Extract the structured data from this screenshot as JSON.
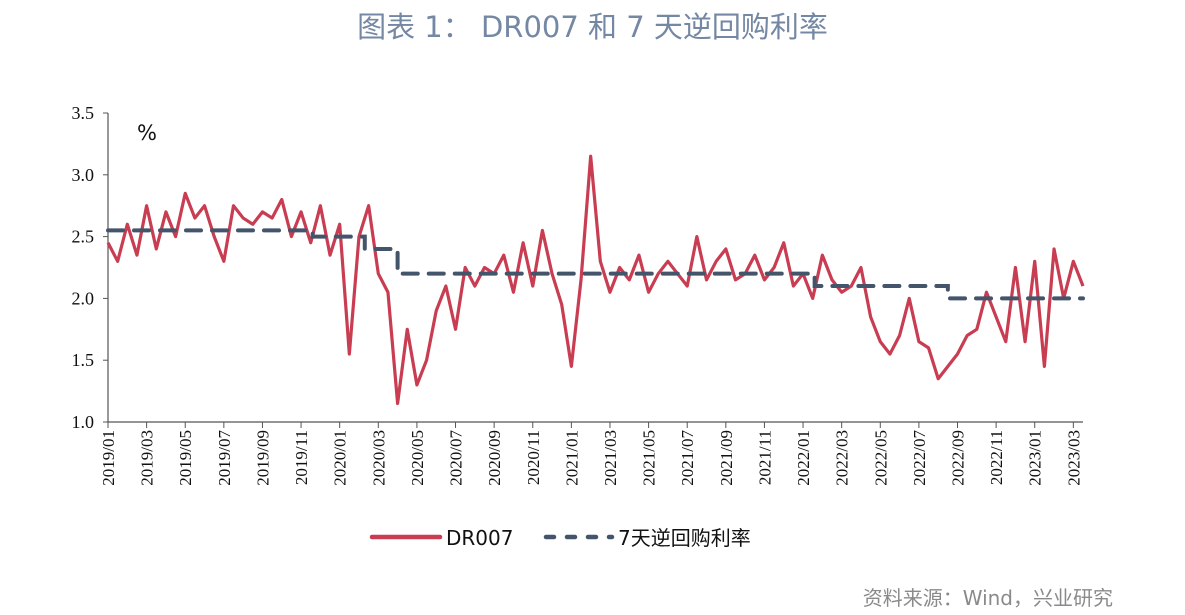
{
  "title": "图表 1： DR007 和 7 天逆回购利率",
  "source": "资料来源：Wind，兴业研究",
  "chart_data": {
    "type": "line",
    "title": "图表 1： DR007 和 7 天逆回购利率",
    "ylabel": "%",
    "xlabel": "",
    "ylim": [
      1.0,
      3.5
    ],
    "yticks": [
      "1.0",
      "1.5",
      "2.0",
      "2.5",
      "3.0",
      "3.5"
    ],
    "xticks": [
      "2019/01",
      "2019/03",
      "2019/05",
      "2019/07",
      "2019/09",
      "2019/11",
      "2020/01",
      "2020/03",
      "2020/05",
      "2020/07",
      "2020/09",
      "2020/11",
      "2021/01",
      "2021/03",
      "2021/05",
      "2021/07",
      "2021/09",
      "2021/11",
      "2022/01",
      "2022/03",
      "2022/05",
      "2022/07",
      "2022/09",
      "2022/11",
      "2023/01",
      "2023/03"
    ],
    "x_unit": "months since 2019/01",
    "xlim": [
      0,
      50.5
    ],
    "grid": false,
    "legend_position": "bottom",
    "colors": {
      "DR007": "#c93d52",
      "7天逆回购利率": "#44546a"
    },
    "series": [
      {
        "name": "DR007",
        "style": "solid",
        "x_step": 0.5,
        "values": [
          2.45,
          2.3,
          2.6,
          2.35,
          2.75,
          2.4,
          2.7,
          2.5,
          2.85,
          2.65,
          2.75,
          2.5,
          2.3,
          2.75,
          2.65,
          2.6,
          2.7,
          2.65,
          2.8,
          2.5,
          2.7,
          2.45,
          2.75,
          2.35,
          2.6,
          1.55,
          2.5,
          2.75,
          2.2,
          2.05,
          1.15,
          1.75,
          1.3,
          1.5,
          1.9,
          2.1,
          1.75,
          2.25,
          2.1,
          2.25,
          2.2,
          2.35,
          2.05,
          2.45,
          2.1,
          2.55,
          2.2,
          1.95,
          1.45,
          2.15,
          3.15,
          2.3,
          2.05,
          2.25,
          2.15,
          2.35,
          2.05,
          2.2,
          2.3,
          2.2,
          2.1,
          2.5,
          2.15,
          2.3,
          2.4,
          2.15,
          2.2,
          2.35,
          2.15,
          2.25,
          2.45,
          2.1,
          2.2,
          2.0,
          2.35,
          2.15,
          2.05,
          2.1,
          2.25,
          1.85,
          1.65,
          1.55,
          1.7,
          2.0,
          1.65,
          1.6,
          1.35,
          1.45,
          1.55,
          1.7,
          1.75,
          2.05,
          1.85,
          1.65,
          2.25,
          1.65,
          2.3,
          1.45,
          2.4,
          2.0,
          2.3,
          2.1
        ]
      },
      {
        "name": "7天逆回购利率",
        "style": "dashed",
        "steps": [
          {
            "from": 0,
            "to": 10.6,
            "value": 2.55
          },
          {
            "from": 10.6,
            "to": 13.3,
            "value": 2.5
          },
          {
            "from": 13.3,
            "to": 15.0,
            "value": 2.4
          },
          {
            "from": 15.0,
            "to": 36.6,
            "value": 2.2
          },
          {
            "from": 36.6,
            "to": 43.5,
            "value": 2.1
          },
          {
            "from": 43.5,
            "to": 50.5,
            "value": 2.0
          }
        ]
      }
    ]
  }
}
